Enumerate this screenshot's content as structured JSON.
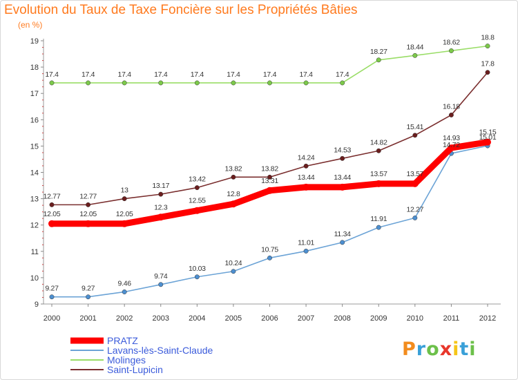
{
  "chart_data": {
    "type": "line",
    "title": "Evolution du Taux de Taxe Foncière sur les Propriétés Bâties",
    "unit_label": "(en %)",
    "xlabel": "",
    "ylabel": "",
    "ylim": [
      9,
      19
    ],
    "yticks": [
      "9",
      "10",
      "11",
      "12",
      "13",
      "14",
      "15",
      "16",
      "17",
      "18",
      "19"
    ],
    "categories": [
      "2000",
      "2001",
      "2002",
      "2003",
      "2004",
      "2005",
      "2006",
      "2007",
      "2008",
      "2009",
      "2010",
      "2011",
      "2012"
    ],
    "series": [
      {
        "name": "PRATZ",
        "color": "#ff0000",
        "values": [
          12.05,
          12.05,
          12.05,
          12.3,
          12.55,
          12.8,
          13.31,
          13.44,
          13.44,
          13.57,
          13.57,
          14.93,
          15.15
        ],
        "labels": [
          "12.05",
          "12.05",
          "12.05",
          "12.3",
          "12.55",
          "12.8",
          "13.31",
          "13.44",
          "13.44",
          "13.57",
          "13.57",
          "14.93",
          "15.15"
        ]
      },
      {
        "name": "Lavans-lès-Saint-Claude",
        "color": "#6ba3d6",
        "values": [
          9.27,
          9.27,
          9.46,
          9.74,
          10.03,
          10.24,
          10.75,
          11.01,
          11.34,
          11.91,
          12.27,
          14.72,
          15.01
        ],
        "labels": [
          "9.27",
          "9.27",
          "9.46",
          "9.74",
          "10.03",
          "10.24",
          "10.75",
          "11.01",
          "11.34",
          "11.91",
          "12.27",
          "14.72",
          "15.01"
        ]
      },
      {
        "name": "Molinges",
        "color": "#99dd66",
        "values": [
          17.4,
          17.4,
          17.4,
          17.4,
          17.4,
          17.4,
          17.4,
          17.4,
          17.4,
          18.27,
          18.44,
          18.62,
          18.8
        ],
        "labels": [
          "17.4",
          "17.4",
          "17.4",
          "17.4",
          "17.4",
          "17.4",
          "17.4",
          "17.4",
          "17.4",
          "18.27",
          "18.44",
          "18.62",
          "18.8"
        ]
      },
      {
        "name": "Saint-Lupicin",
        "color": "#7a2e2e",
        "values": [
          12.77,
          12.77,
          13,
          13.17,
          13.42,
          13.82,
          13.82,
          14.24,
          14.53,
          14.82,
          15.41,
          16.18,
          17.8
        ],
        "labels": [
          "12.77",
          "12.77",
          "13",
          "13.17",
          "13.42",
          "13.82",
          "13.82",
          "14.24",
          "14.53",
          "14.82",
          "15.41",
          "16.18",
          "17.8"
        ]
      }
    ],
    "legend_position": "bottom-left",
    "grid": false
  },
  "brand": {
    "letters": [
      "P",
      "r",
      "o",
      "x",
      "i",
      "t",
      "i"
    ],
    "colors": [
      "#f28c1e",
      "#3aa0d8",
      "#6cc04a",
      "#e8372b",
      "#f5c518",
      "#3aa0d8",
      "#6cc04a"
    ]
  }
}
